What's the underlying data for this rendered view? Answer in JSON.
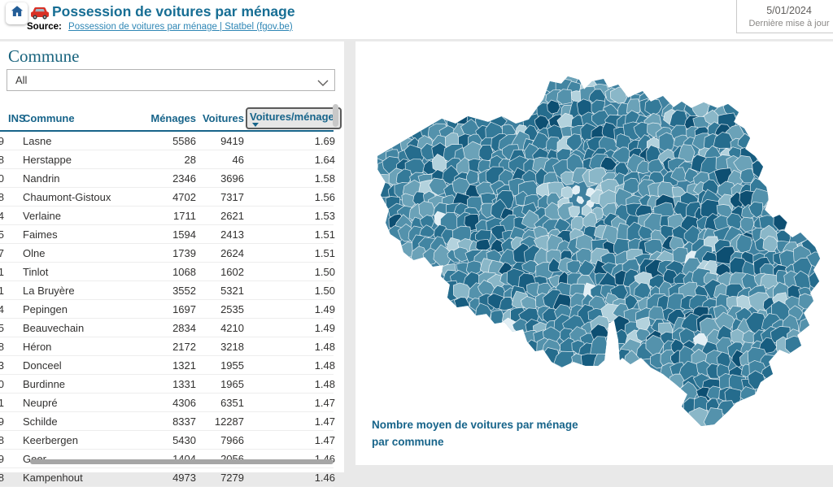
{
  "header": {
    "title": "Possession de voitures par ménage",
    "source_label": "Source:",
    "source_link_text": "Possession de voitures par ménage | Statbel (fgov.be)",
    "icons": [
      "home-icon",
      "car-icon"
    ]
  },
  "update_card": {
    "date": "5/01/2024",
    "label": "Dernière mise à jour"
  },
  "slicer": {
    "title": "Commune",
    "value": "All",
    "icon": "chevron-down-icon"
  },
  "table": {
    "columns": [
      "INS",
      "Commune",
      "Ménages",
      "Voitures",
      "Voitures/ménage"
    ],
    "sorted_column": "Voitures/ménage",
    "sort_direction": "desc",
    "rows": [
      {
        "ins_fragment": "9",
        "commune": "Lasne",
        "menages": "5586",
        "voitures": "9419",
        "ratio": "1.69"
      },
      {
        "ins_fragment": "8",
        "commune": "Herstappe",
        "menages": "28",
        "voitures": "46",
        "ratio": "1.64"
      },
      {
        "ins_fragment": "0",
        "commune": "Nandrin",
        "menages": "2346",
        "voitures": "3696",
        "ratio": "1.58"
      },
      {
        "ins_fragment": "8",
        "commune": "Chaumont-Gistoux",
        "menages": "4702",
        "voitures": "7317",
        "ratio": "1.56"
      },
      {
        "ins_fragment": "4",
        "commune": "Verlaine",
        "menages": "1711",
        "voitures": "2621",
        "ratio": "1.53"
      },
      {
        "ins_fragment": "5",
        "commune": "Faimes",
        "menages": "1594",
        "voitures": "2413",
        "ratio": "1.51"
      },
      {
        "ins_fragment": "7",
        "commune": "Olne",
        "menages": "1739",
        "voitures": "2624",
        "ratio": "1.51"
      },
      {
        "ins_fragment": "1",
        "commune": "Tinlot",
        "menages": "1068",
        "voitures": "1602",
        "ratio": "1.50"
      },
      {
        "ins_fragment": "1",
        "commune": "La Bruyère",
        "menages": "3552",
        "voitures": "5321",
        "ratio": "1.50"
      },
      {
        "ins_fragment": "4",
        "commune": "Pepingen",
        "menages": "1697",
        "voitures": "2535",
        "ratio": "1.49"
      },
      {
        "ins_fragment": "5",
        "commune": "Beauvechain",
        "menages": "2834",
        "voitures": "4210",
        "ratio": "1.49"
      },
      {
        "ins_fragment": "8",
        "commune": "Héron",
        "menages": "2172",
        "voitures": "3218",
        "ratio": "1.48"
      },
      {
        "ins_fragment": "3",
        "commune": "Donceel",
        "menages": "1321",
        "voitures": "1955",
        "ratio": "1.48"
      },
      {
        "ins_fragment": "0",
        "commune": "Burdinne",
        "menages": "1331",
        "voitures": "1965",
        "ratio": "1.48"
      },
      {
        "ins_fragment": "1",
        "commune": "Neupré",
        "menages": "4306",
        "voitures": "6351",
        "ratio": "1.47"
      },
      {
        "ins_fragment": "9",
        "commune": "Schilde",
        "menages": "8337",
        "voitures": "12287",
        "ratio": "1.47"
      },
      {
        "ins_fragment": "8",
        "commune": "Keerbergen",
        "menages": "5430",
        "voitures": "7966",
        "ratio": "1.47"
      },
      {
        "ins_fragment": "9",
        "commune": "Geer",
        "menages": "1404",
        "voitures": "2056",
        "ratio": "1.46"
      },
      {
        "ins_fragment": "8",
        "commune": "Kampenhout",
        "menages": "4973",
        "voitures": "7279",
        "ratio": "1.46"
      }
    ]
  },
  "map": {
    "caption_line1": "Nombre moyen de voitures par ménage",
    "caption_line2": "par commune",
    "palette": [
      "#0d4f72",
      "#175d80",
      "#256c8d",
      "#347a99",
      "#4285a2",
      "#5492ac",
      "#6ba2b8",
      "#8ab7c8",
      "#b3d2dd",
      "#e2eff5"
    ],
    "base_fill": "#3f81a0",
    "border_color": "#ffffff"
  },
  "colors": {
    "accent_teal": "#17648a",
    "title_teal": "#176e94",
    "link_blue": "#2e86b5"
  }
}
